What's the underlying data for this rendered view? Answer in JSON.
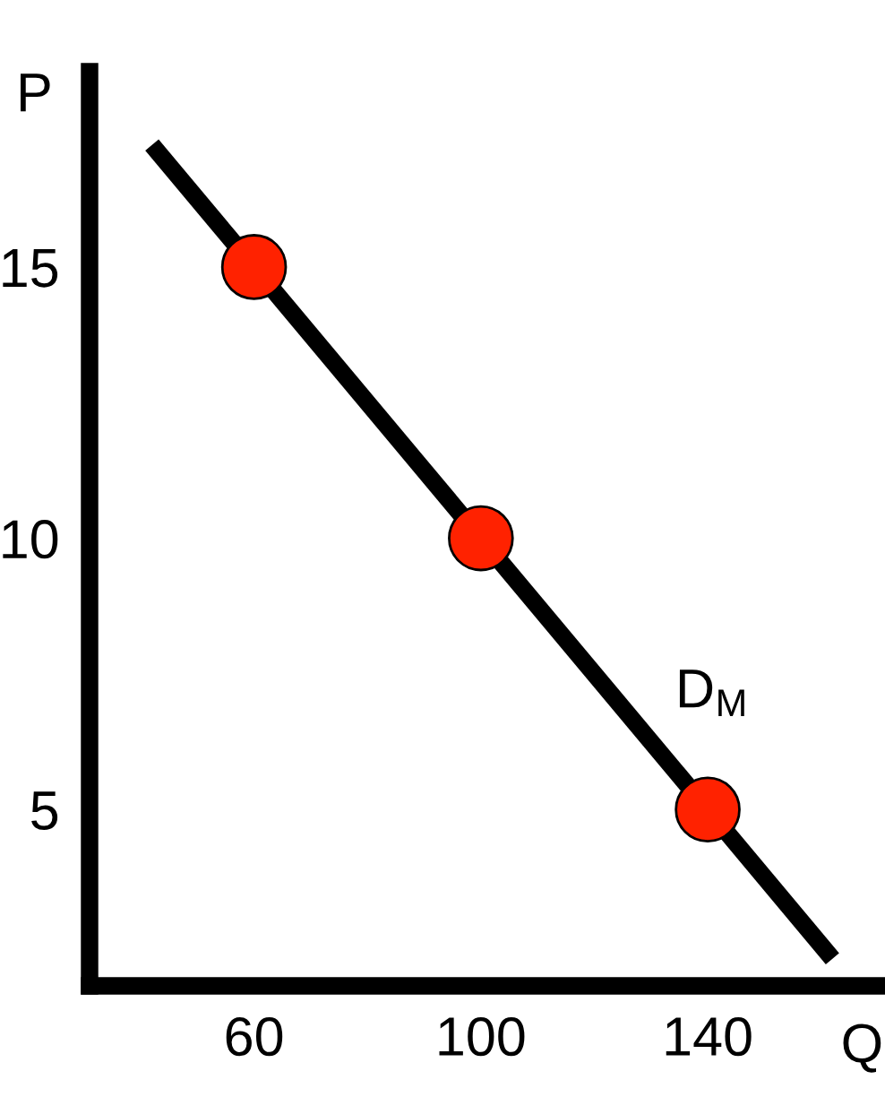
{
  "chart_data": {
    "type": "line",
    "xlabel": "Q",
    "ylabel": "P",
    "xlim": [
      31,
      170
    ],
    "ylim": [
      1.75,
      18.6
    ],
    "xticks": [
      60,
      100,
      140
    ],
    "yticks": [
      5,
      10,
      15
    ],
    "grid": false,
    "legend": false,
    "series": [
      {
        "color": "#000000",
        "x": [
          42,
          162
        ],
        "values": [
          17.25,
          2.25
        ],
        "marker": "none",
        "line_style": "solid"
      },
      {
        "type": "scatter",
        "color": "#ff2200",
        "x": [
          60,
          100,
          140
        ],
        "values": [
          15,
          10,
          5
        ],
        "marker": "circle"
      }
    ],
    "annotations": [
      "D$_{M}$"
    ]
  }
}
